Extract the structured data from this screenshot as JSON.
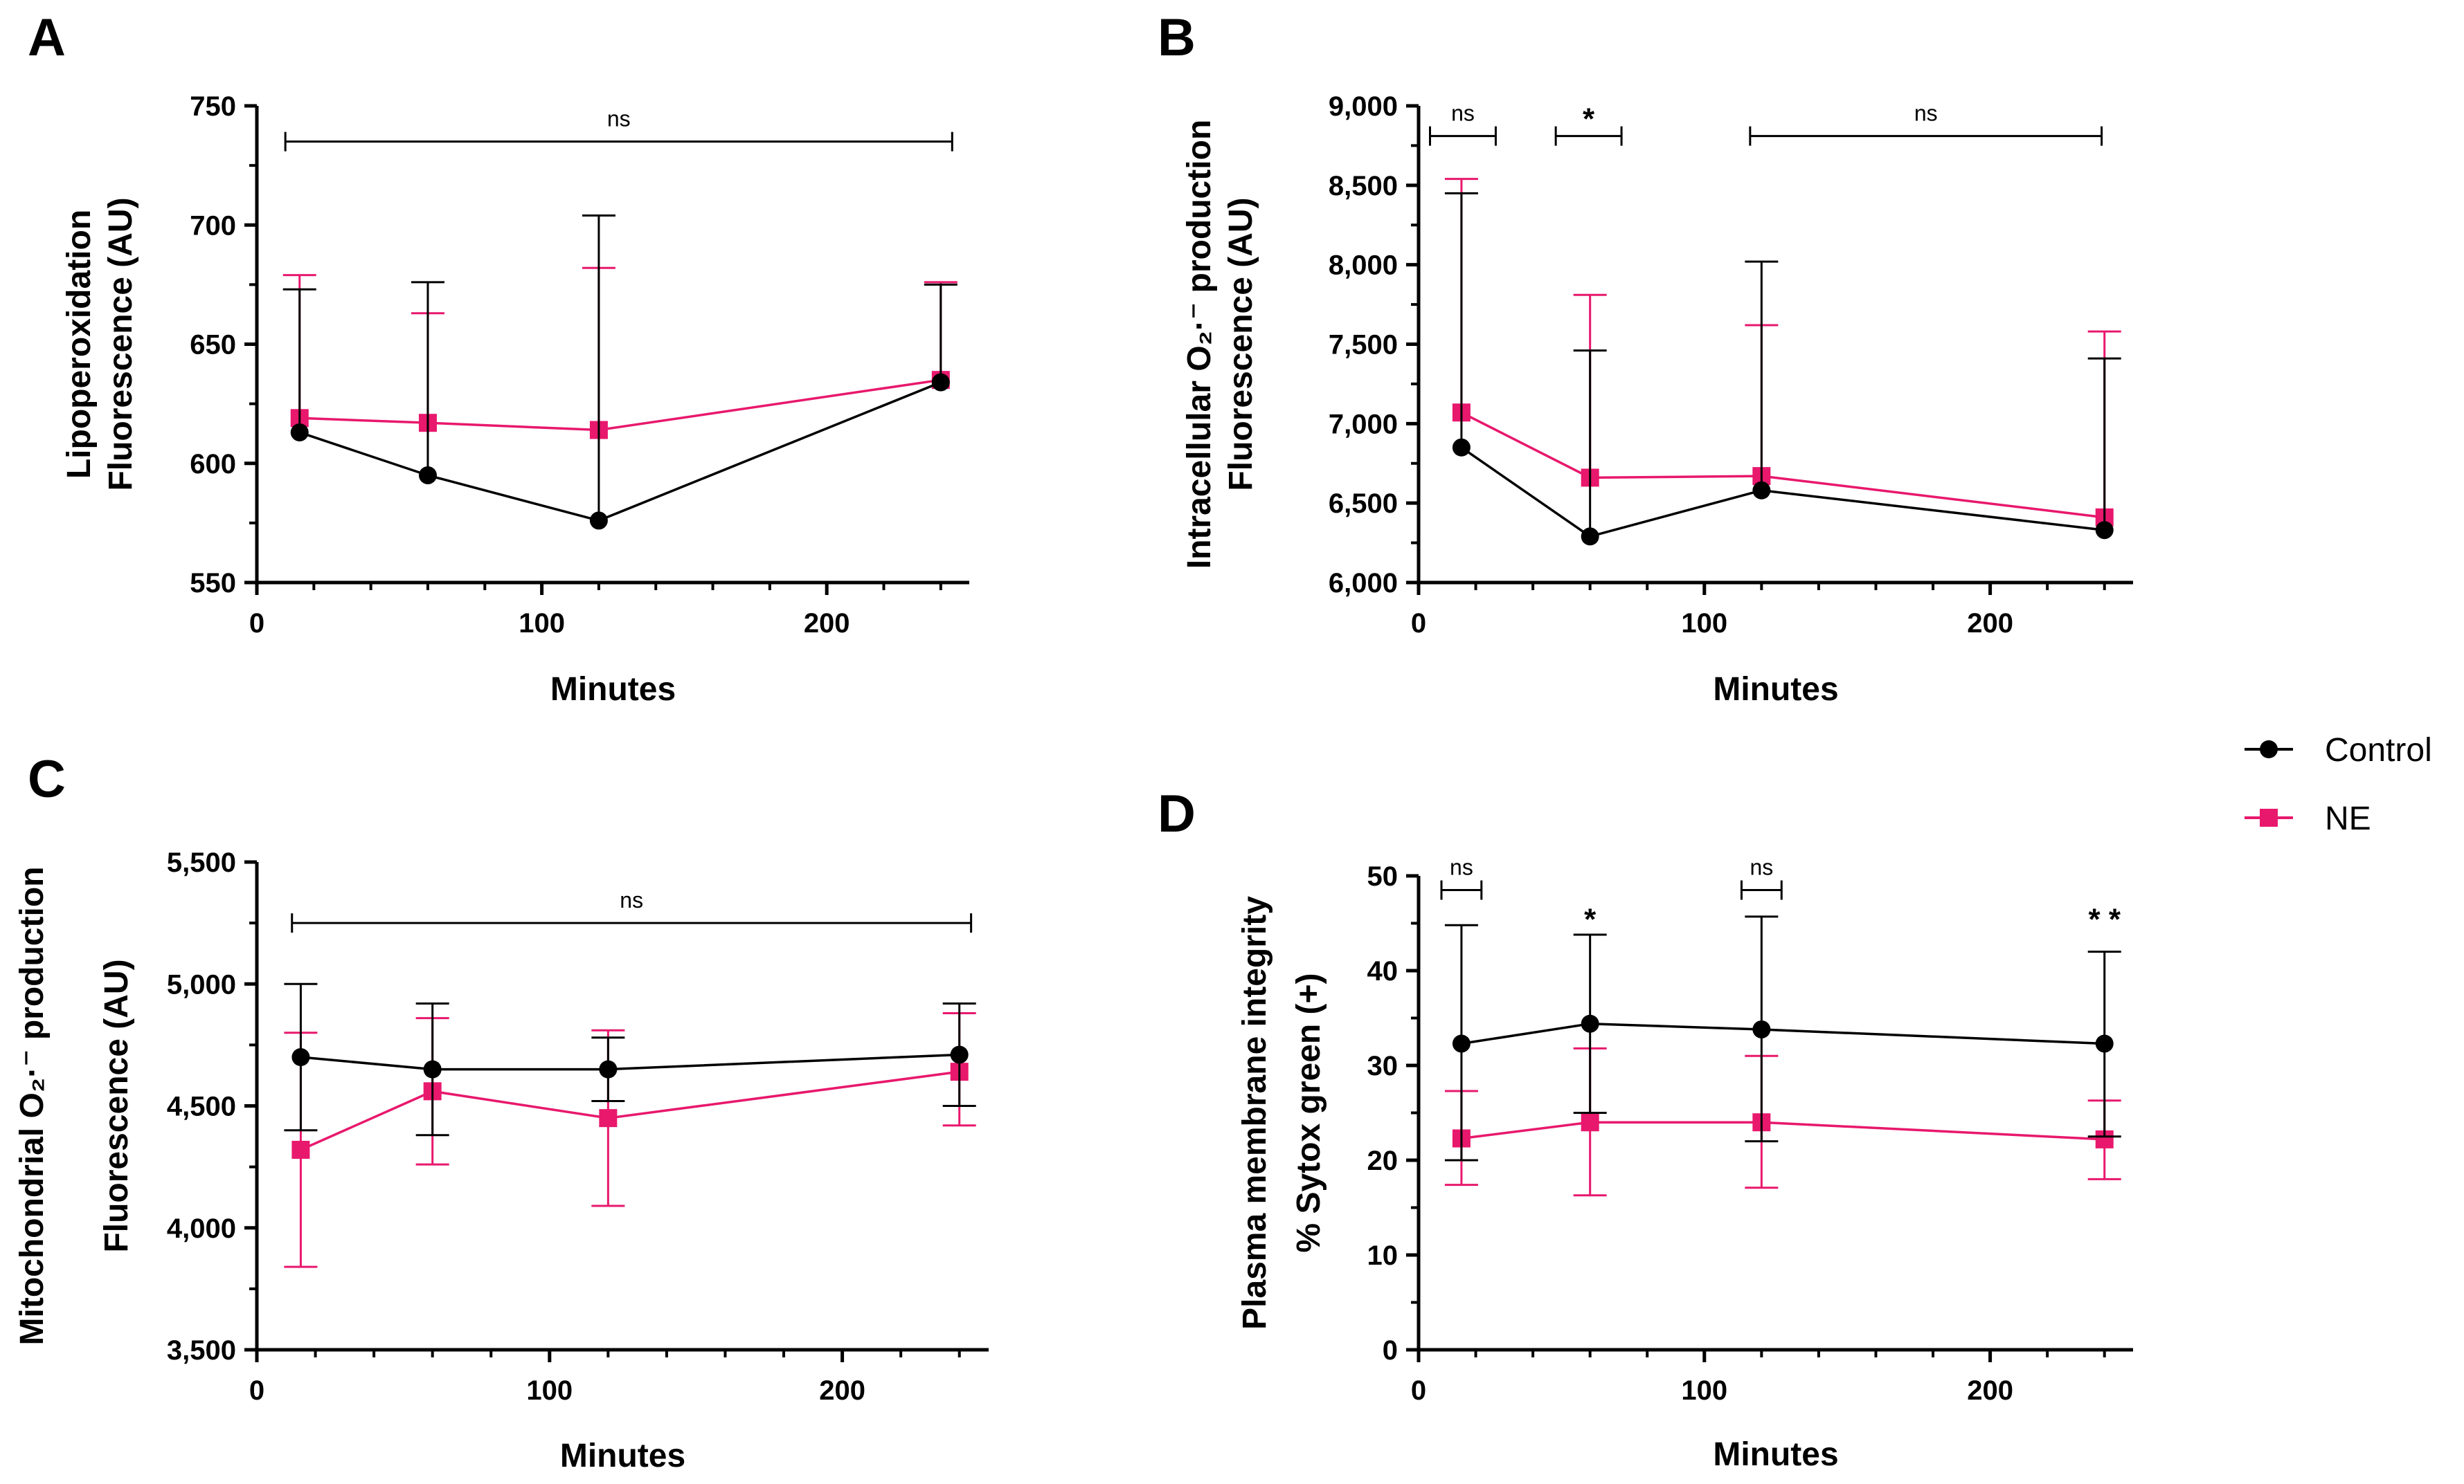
{
  "colors": {
    "control": "#000000",
    "ne": "#e8186d",
    "axis": "#000000"
  },
  "legend": [
    {
      "series": "control",
      "label": "Control",
      "marker": "circle"
    },
    {
      "series": "ne",
      "label": "NE",
      "marker": "square"
    }
  ],
  "chart_data": [
    {
      "panel": "A",
      "type": "line",
      "xlabel": "Minutes",
      "ylabel": [
        "Lipoperoxidation",
        "Fluorescence (AU)"
      ],
      "xlim": [
        0,
        250
      ],
      "ylim": [
        550,
        750
      ],
      "xticks": [
        0,
        100,
        200
      ],
      "xtick_labels": [
        "0",
        "100",
        "200"
      ],
      "yticks": [
        550,
        600,
        650,
        700,
        750
      ],
      "ytick_labels": [
        "550",
        "600",
        "650",
        "700",
        "750"
      ],
      "x": [
        15,
        60,
        120,
        240
      ],
      "series": [
        {
          "key": "control",
          "name": "Control",
          "values": [
            613,
            595,
            576,
            634
          ],
          "err_up": [
            673,
            676,
            704,
            675
          ],
          "err_down": [
            null,
            null,
            null,
            null
          ]
        },
        {
          "key": "ne",
          "name": "NE",
          "values": [
            619,
            617,
            614,
            635
          ],
          "err_up": [
            679,
            663,
            682,
            676
          ],
          "err_down": [
            null,
            null,
            null,
            null
          ]
        }
      ],
      "annotations": [
        {
          "type": "bracket",
          "x1": 10,
          "x2": 244,
          "y": 735,
          "label": "ns"
        }
      ]
    },
    {
      "panel": "B",
      "type": "line",
      "xlabel": "Minutes",
      "ylabel": [
        "Intracellular O₂·⁻ production",
        "Fluorescence (AU)"
      ],
      "xlim": [
        0,
        250
      ],
      "ylim": [
        6000,
        9000
      ],
      "xticks": [
        0,
        100,
        200
      ],
      "xtick_labels": [
        "0",
        "100",
        "200"
      ],
      "yticks": [
        6000,
        6500,
        7000,
        7500,
        8000,
        8500,
        9000
      ],
      "ytick_labels": [
        "6,000",
        "6,500",
        "7,000",
        "7,500",
        "8,000",
        "8,500",
        "9,000"
      ],
      "x": [
        15,
        60,
        120,
        240
      ],
      "series": [
        {
          "key": "control",
          "name": "Control",
          "values": [
            6850,
            6290,
            6580,
            6330
          ],
          "err_up": [
            8450,
            7460,
            8020,
            7410
          ],
          "err_down": [
            null,
            null,
            null,
            null
          ]
        },
        {
          "key": "ne",
          "name": "NE",
          "values": [
            7070,
            6660,
            6670,
            6410
          ],
          "err_up": [
            8540,
            7810,
            7620,
            7580
          ],
          "err_down": [
            null,
            null,
            null,
            null
          ]
        }
      ],
      "annotations": [
        {
          "type": "bracket",
          "x1": 4,
          "x2": 27,
          "y": 8810,
          "label": "ns"
        },
        {
          "type": "bracket",
          "x1": 48,
          "x2": 71,
          "y": 8810,
          "label": "*"
        },
        {
          "type": "bracket",
          "x1": 116,
          "x2": 239,
          "y": 8810,
          "label": "ns"
        }
      ]
    },
    {
      "panel": "C",
      "type": "line",
      "xlabel": "Minutes",
      "ylabel": [
        "Mitochondrial O₂·⁻ production",
        "Fluorescence (AU)"
      ],
      "xlim": [
        0,
        250
      ],
      "ylim": [
        3500,
        5500
      ],
      "xticks": [
        0,
        100,
        200
      ],
      "xtick_labels": [
        "0",
        "100",
        "200"
      ],
      "yticks": [
        3500,
        4000,
        4500,
        5000,
        5500
      ],
      "ytick_labels": [
        "3,500",
        "4,000",
        "4,500",
        "5,000",
        "5,500"
      ],
      "x": [
        15,
        60,
        120,
        240
      ],
      "series": [
        {
          "key": "control",
          "name": "Control",
          "values": [
            4700,
            4650,
            4650,
            4710
          ],
          "err_up": [
            5000,
            4920,
            4780,
            4920
          ],
          "err_down": [
            4400,
            4380,
            4520,
            4500
          ]
        },
        {
          "key": "ne",
          "name": "NE",
          "values": [
            4320,
            4560,
            4450,
            4640
          ],
          "err_up": [
            4800,
            4860,
            4810,
            4880
          ],
          "err_down": [
            3840,
            4260,
            4090,
            4420
          ]
        }
      ],
      "annotations": [
        {
          "type": "bracket",
          "x1": 12,
          "x2": 244,
          "y": 5250,
          "label": "ns"
        }
      ]
    },
    {
      "panel": "D",
      "type": "line",
      "xlabel": "Minutes",
      "ylabel": [
        "Plasma membrane integrity",
        "% Sytox green (+)"
      ],
      "xlim": [
        0,
        250
      ],
      "ylim": [
        0,
        50
      ],
      "xticks": [
        0,
        100,
        200
      ],
      "xtick_labels": [
        "0",
        "100",
        "200"
      ],
      "yticks": [
        0,
        10,
        20,
        30,
        40,
        50
      ],
      "ytick_labels": [
        "0",
        "10",
        "20",
        "30",
        "40",
        "50"
      ],
      "x": [
        15,
        60,
        120,
        240
      ],
      "series": [
        {
          "key": "control",
          "name": "Control",
          "values": [
            32.3,
            34.4,
            33.8,
            32.3
          ],
          "err_up": [
            44.8,
            43.8,
            45.7,
            42.0
          ],
          "err_down": [
            20.0,
            25.0,
            22.0,
            22.5
          ]
        },
        {
          "key": "ne",
          "name": "NE",
          "values": [
            22.3,
            24.0,
            24.0,
            22.2
          ],
          "err_up": [
            27.3,
            31.8,
            31.0,
            26.3
          ],
          "err_down": [
            17.4,
            16.3,
            17.1,
            18.0
          ]
        }
      ],
      "annotations": [
        {
          "type": "bracket",
          "x1": 8,
          "x2": 22,
          "y": 48.5,
          "label": "ns"
        },
        {
          "type": "bracket",
          "x1": 113,
          "x2": 127,
          "y": 48.5,
          "label": "ns"
        },
        {
          "type": "text",
          "x": 60,
          "y": 45.5,
          "label": "*"
        },
        {
          "type": "text",
          "x": 240,
          "y": 45.5,
          "label": "* *"
        }
      ]
    }
  ]
}
